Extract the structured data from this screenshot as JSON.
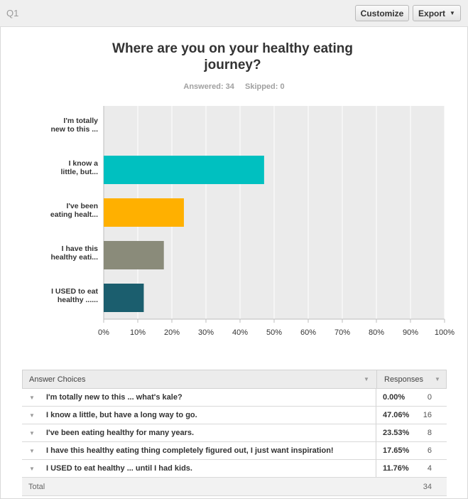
{
  "header": {
    "question_number": "Q1",
    "customize_label": "Customize",
    "export_label": "Export"
  },
  "question": {
    "title": "Where are you on your healthy eating journey?",
    "answered": "Answered: 34",
    "skipped": "Skipped: 0"
  },
  "chart_data": {
    "type": "bar",
    "orientation": "horizontal",
    "categories": [
      [
        "I'm totally",
        "new to this ..."
      ],
      [
        "I know a",
        "little, but..."
      ],
      [
        "I've been",
        "eating healt..."
      ],
      [
        "I have this",
        "healthy eati..."
      ],
      [
        "I USED to eat",
        "healthy ......"
      ]
    ],
    "values": [
      0,
      47.06,
      23.53,
      17.65,
      11.76
    ],
    "colors": [
      "#7ea1c4",
      "#00c0c0",
      "#ffb000",
      "#8a8b7a",
      "#1b5e6e"
    ],
    "xlim": [
      0,
      100
    ],
    "xticks": [
      "0%",
      "10%",
      "20%",
      "30%",
      "40%",
      "50%",
      "60%",
      "70%",
      "80%",
      "90%",
      "100%"
    ],
    "grid": true
  },
  "table": {
    "headers": {
      "answer": "Answer Choices",
      "responses": "Responses"
    },
    "rows": [
      {
        "label": "I'm totally new to this ... what's kale?",
        "percent": "0.00%",
        "count": "0"
      },
      {
        "label": "I know a little, but have a long way to go.",
        "percent": "47.06%",
        "count": "16"
      },
      {
        "label": "I've been eating healthy for many years.",
        "percent": "23.53%",
        "count": "8"
      },
      {
        "label": "I have this healthy eating thing completely figured out, I just want inspiration!",
        "percent": "17.65%",
        "count": "6"
      },
      {
        "label": "I USED to eat healthy ... until I had kids.",
        "percent": "11.76%",
        "count": "4"
      }
    ],
    "total_label": "Total",
    "total_value": "34"
  }
}
